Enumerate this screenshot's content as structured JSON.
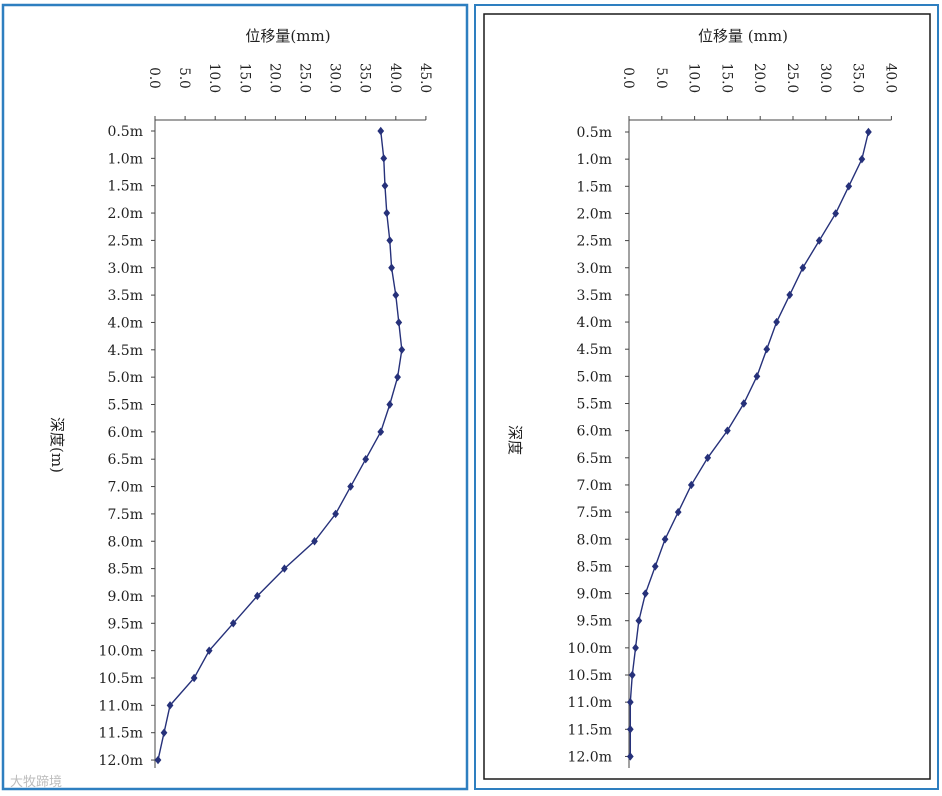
{
  "chart_data": [
    {
      "type": "line",
      "title": "位移量(mm)",
      "ylabel": "深度(m)",
      "xlabel": "",
      "x_axis_position": "top",
      "x_tick_labels": [
        "0.0",
        "5.0",
        "10.0",
        "15.0",
        "20.0",
        "25.0",
        "30.0",
        "35.0",
        "40.0",
        "45.0"
      ],
      "xlim": [
        0,
        45
      ],
      "depth_labels": [
        "0.5m",
        "1.0m",
        "1.5m",
        "2.0m",
        "2.5m",
        "3.0m",
        "3.5m",
        "4.0m",
        "4.5m",
        "5.0m",
        "5.5m",
        "6.0m",
        "6.5m",
        "7.0m",
        "7.5m",
        "8.0m",
        "8.5m",
        "9.0m",
        "9.5m",
        "10.0m",
        "10.5m",
        "11.0m",
        "11.5m",
        "12.0m"
      ],
      "series": [
        {
          "color": "#26317a",
          "values": [
            37.5,
            38.0,
            38.2,
            38.5,
            39.0,
            39.3,
            40.0,
            40.5,
            41.0,
            40.3,
            39.0,
            37.5,
            35.0,
            32.5,
            30.0,
            26.5,
            21.5,
            17.0,
            13.0,
            9.0,
            6.5,
            2.5,
            1.5,
            0.5
          ]
        }
      ],
      "grid": false
    },
    {
      "type": "line",
      "title": "位移量 (mm)",
      "ylabel": "深度",
      "xlabel": "",
      "x_axis_position": "top",
      "x_tick_labels": [
        "0.0",
        "5.0",
        "10.0",
        "15.0",
        "20.0",
        "25.0",
        "30.0",
        "35.0",
        "40.0"
      ],
      "xlim": [
        0,
        40
      ],
      "depth_labels": [
        "0.5m",
        "1.0m",
        "1.5m",
        "2.0m",
        "2.5m",
        "3.0m",
        "3.5m",
        "4.0m",
        "4.5m",
        "5.0m",
        "5.5m",
        "6.0m",
        "6.5m",
        "7.0m",
        "7.5m",
        "8.0m",
        "8.5m",
        "9.0m",
        "9.5m",
        "10.0m",
        "10.5m",
        "11.0m",
        "11.5m",
        "12.0m"
      ],
      "series": [
        {
          "color": "#26317a",
          "values": [
            36.5,
            35.5,
            33.5,
            31.5,
            29.0,
            26.5,
            24.5,
            22.5,
            21.0,
            19.5,
            17.5,
            15.0,
            12.0,
            9.5,
            7.5,
            5.5,
            4.0,
            2.5,
            1.5,
            1.0,
            0.5,
            0.2,
            0.2,
            0.2
          ]
        }
      ],
      "grid": false
    }
  ],
  "watermark": "大牧蹄境",
  "colors": {
    "frame_left": "#2e7fc0",
    "frame_right": "#1a1a1a",
    "line": "#26317a",
    "axis": "#444444"
  }
}
